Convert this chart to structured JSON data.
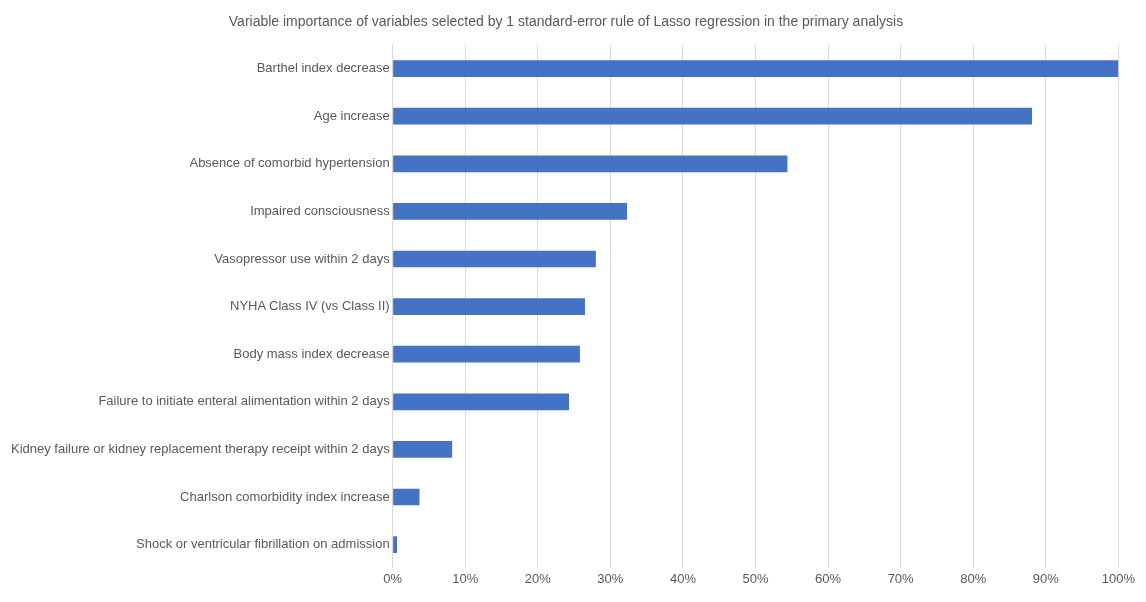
{
  "chart_data": {
    "type": "bar",
    "orientation": "horizontal",
    "title": "Variable importance of variables selected by 1 standard-error rule of Lasso regression in the primary analysis",
    "categories": [
      "Barthel index decrease",
      "Age increase",
      "Absence of comorbid hypertension",
      "Impaired consciousness",
      "Vasopressor use within 2 days",
      "NYHA Class IV (vs Class II)",
      "Body mass index decrease",
      "Failure to initiate enteral alimentation within 2 days",
      "Kidney failure or kidney replacement therapy receipt within 2 days",
      "Charlson comorbidity index increase",
      "Shock or ventricular fibrillation on admission"
    ],
    "values": [
      100,
      88.1,
      54.4,
      32.3,
      28.0,
      26.5,
      25.8,
      24.3,
      8.2,
      3.7,
      0.6
    ],
    "color": "#4472c4",
    "xlim": [
      0,
      100
    ],
    "xticks": [
      {
        "value": 0,
        "label": "0%"
      },
      {
        "value": 10,
        "label": "10%"
      },
      {
        "value": 20,
        "label": "20%"
      },
      {
        "value": 30,
        "label": "30%"
      },
      {
        "value": 40,
        "label": "40%"
      },
      {
        "value": 50,
        "label": "50%"
      },
      {
        "value": 60,
        "label": "60%"
      },
      {
        "value": 70,
        "label": "70%"
      },
      {
        "value": 80,
        "label": "80%"
      },
      {
        "value": 90,
        "label": "90%"
      },
      {
        "value": 100,
        "label": "100%"
      }
    ],
    "grid": "x",
    "legend": false
  }
}
